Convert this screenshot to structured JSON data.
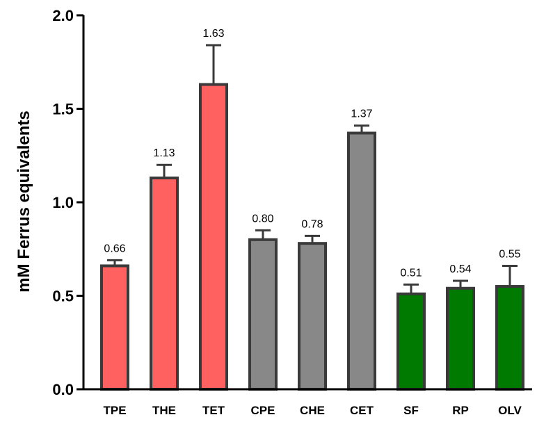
{
  "chart_data": {
    "type": "bar",
    "title": "",
    "xlabel": "",
    "ylabel": "mM Ferrus equivalents",
    "ylim": [
      0,
      2.0
    ],
    "yticks": [
      "0.0",
      "0.5",
      "1.0",
      "1.5",
      "2.0"
    ],
    "grid": false,
    "categories": [
      "TPE",
      "THE",
      "TET",
      "CPE",
      "CHE",
      "CET",
      "SF",
      "RP",
      "OLV"
    ],
    "values": [
      0.66,
      1.13,
      1.63,
      0.8,
      0.78,
      1.37,
      0.51,
      0.54,
      0.55
    ],
    "value_labels": [
      "0.66",
      "1.13",
      "1.63",
      "0.80",
      "0.78",
      "1.37",
      "0.51",
      "0.54",
      "0.55"
    ],
    "error_upper": [
      0.69,
      1.2,
      1.84,
      0.85,
      0.82,
      1.41,
      0.56,
      0.58,
      0.66
    ],
    "colors": [
      "#ff6161",
      "#ff6161",
      "#ff6161",
      "#888888",
      "#888888",
      "#888888",
      "#007a00",
      "#007a00",
      "#007a00"
    ],
    "edge_color": "#3a3a3a"
  }
}
